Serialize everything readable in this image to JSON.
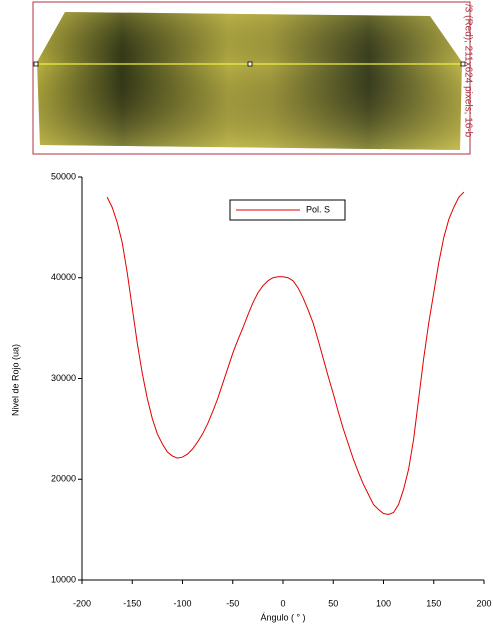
{
  "image_caption": "/3 (Red); 211x624 pixels; 16-b",
  "chart_data": {
    "type": "line",
    "xlabel": "Ángulo ( ° )",
    "ylabel": "Nivel de Rojo (ua)",
    "x": [
      -175,
      -170,
      -165,
      -160,
      -155,
      -150,
      -145,
      -140,
      -135,
      -130,
      -125,
      -120,
      -115,
      -110,
      -105,
      -100,
      -95,
      -90,
      -85,
      -80,
      -75,
      -70,
      -65,
      -60,
      -55,
      -50,
      -45,
      -40,
      -35,
      -30,
      -25,
      -20,
      -15,
      -10,
      -5,
      0,
      5,
      10,
      15,
      20,
      25,
      30,
      35,
      40,
      45,
      50,
      55,
      60,
      65,
      70,
      75,
      80,
      85,
      90,
      95,
      100,
      105,
      110,
      115,
      120,
      125,
      130,
      135,
      140,
      145,
      150,
      155,
      160,
      165,
      170,
      175,
      180
    ],
    "series": [
      {
        "name": "Pol. S",
        "color": "#e00000",
        "values": [
          48000,
          47000,
          45500,
          43500,
          40500,
          37000,
          33500,
          30500,
          28000,
          26000,
          24500,
          23500,
          22700,
          22300,
          22100,
          22200,
          22500,
          23000,
          23700,
          24500,
          25500,
          26700,
          28000,
          29500,
          31000,
          32500,
          33800,
          35000,
          36300,
          37500,
          38500,
          39200,
          39700,
          40000,
          40100,
          40100,
          40000,
          39700,
          39000,
          38000,
          36800,
          35500,
          33800,
          32000,
          30200,
          28500,
          26700,
          25000,
          23500,
          22000,
          20700,
          19500,
          18500,
          17500,
          17000,
          16600,
          16500,
          16700,
          17500,
          19000,
          21000,
          24000,
          28000,
          32000,
          35500,
          38500,
          41500,
          44000,
          45800,
          47000,
          48000,
          48500
        ]
      }
    ],
    "xlim": [
      -200,
      200
    ],
    "xticks": [
      -200,
      -150,
      -100,
      -50,
      0,
      50,
      100,
      150,
      200
    ],
    "ylim": [
      10000,
      50000
    ],
    "yticks": [
      10000,
      20000,
      30000,
      40000,
      50000
    ],
    "legend": "upper center"
  }
}
